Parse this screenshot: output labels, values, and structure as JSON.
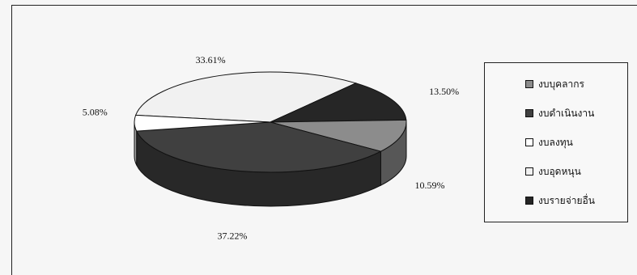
{
  "chart_data": {
    "type": "pie",
    "title": "",
    "slices": [
      {
        "label": "งบบุคลากร",
        "value": 10.59,
        "display": "10.59%",
        "color": "#8c8c8c"
      },
      {
        "label": "งบดำเนินงาน",
        "value": 37.22,
        "display": "37.22%",
        "color": "#404040"
      },
      {
        "label": "งบลงทุน",
        "value": 5.08,
        "display": "5.08%",
        "color": "#ffffff"
      },
      {
        "label": "งบอุดหนุน",
        "value": 33.61,
        "display": "33.61%",
        "color": "#f1f1f1"
      },
      {
        "label": "งบรายจ่ายอื่น",
        "value": 13.5,
        "display": "13.50%",
        "color": "#262626"
      }
    ],
    "legend_position": "right",
    "three_d": true
  }
}
